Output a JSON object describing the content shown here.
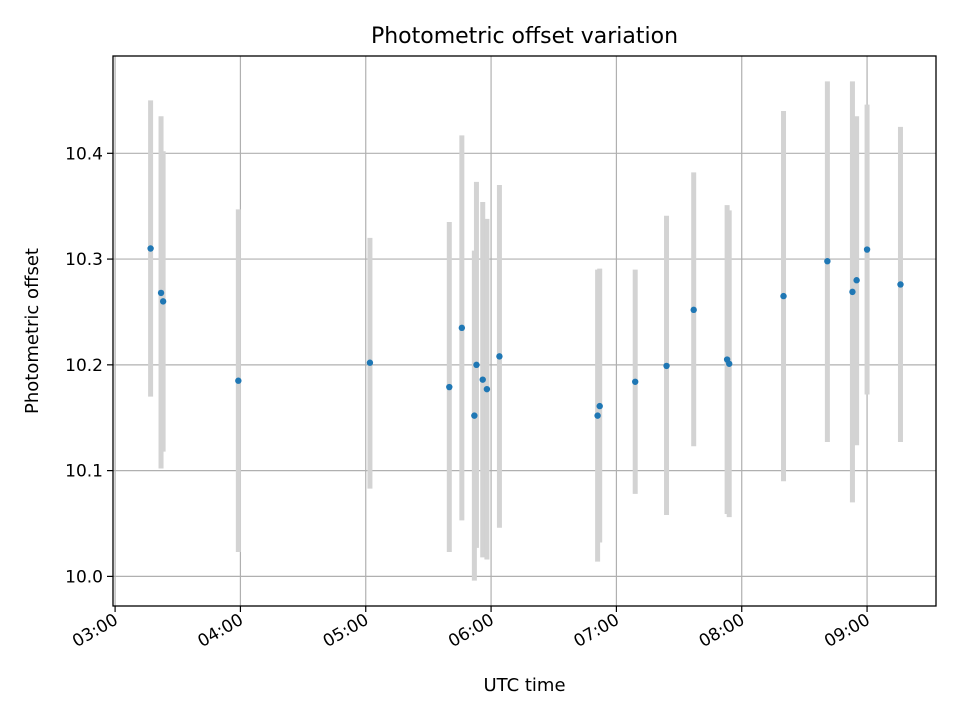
{
  "chart_data": {
    "type": "scatter",
    "title": "Photometric offset variation",
    "xlabel": "UTC time",
    "ylabel": "Photometric offset",
    "x_ticks": [
      "03:00",
      "04:00",
      "05:00",
      "06:00",
      "07:00",
      "08:00",
      "09:00"
    ],
    "y_ticks": [
      "10.0",
      "10.1",
      "10.2",
      "10.3",
      "10.4"
    ],
    "xlim": [
      "02:59",
      "09:33"
    ],
    "ylim": [
      9.972,
      10.492
    ],
    "grid": true,
    "colors": {
      "point": "#1f77b4",
      "errorbar": "#d3d3d3",
      "grid": "#b0b0b0"
    },
    "points": [
      {
        "x": "03:17",
        "y": 10.31,
        "y_low": 10.17,
        "y_high": 10.45
      },
      {
        "x": "03:22",
        "y": 10.268,
        "y_low": 10.102,
        "y_high": 10.435
      },
      {
        "x": "03:23",
        "y": 10.26,
        "y_low": 10.118,
        "y_high": 10.402
      },
      {
        "x": "03:59",
        "y": 10.185,
        "y_low": 10.023,
        "y_high": 10.347
      },
      {
        "x": "05:02",
        "y": 10.202,
        "y_low": 10.083,
        "y_high": 10.32
      },
      {
        "x": "05:40",
        "y": 10.179,
        "y_low": 10.023,
        "y_high": 10.335
      },
      {
        "x": "05:46",
        "y": 10.235,
        "y_low": 10.053,
        "y_high": 10.417
      },
      {
        "x": "05:52",
        "y": 10.152,
        "y_low": 9.996,
        "y_high": 10.308
      },
      {
        "x": "05:53",
        "y": 10.2,
        "y_low": 10.027,
        "y_high": 10.373
      },
      {
        "x": "05:56",
        "y": 10.186,
        "y_low": 10.018,
        "y_high": 10.354
      },
      {
        "x": "05:58",
        "y": 10.177,
        "y_low": 10.016,
        "y_high": 10.338
      },
      {
        "x": "06:04",
        "y": 10.208,
        "y_low": 10.046,
        "y_high": 10.37
      },
      {
        "x": "06:51",
        "y": 10.152,
        "y_low": 10.014,
        "y_high": 10.29
      },
      {
        "x": "06:52",
        "y": 10.161,
        "y_low": 10.032,
        "y_high": 10.291
      },
      {
        "x": "07:09",
        "y": 10.184,
        "y_low": 10.078,
        "y_high": 10.29
      },
      {
        "x": "07:24",
        "y": 10.199,
        "y_low": 10.058,
        "y_high": 10.341
      },
      {
        "x": "07:37",
        "y": 10.252,
        "y_low": 10.123,
        "y_high": 10.382
      },
      {
        "x": "07:53",
        "y": 10.205,
        "y_low": 10.059,
        "y_high": 10.351
      },
      {
        "x": "07:54",
        "y": 10.201,
        "y_low": 10.056,
        "y_high": 10.346
      },
      {
        "x": "08:20",
        "y": 10.265,
        "y_low": 10.09,
        "y_high": 10.44
      },
      {
        "x": "08:41",
        "y": 10.298,
        "y_low": 10.127,
        "y_high": 10.468
      },
      {
        "x": "08:53",
        "y": 10.269,
        "y_low": 10.07,
        "y_high": 10.468
      },
      {
        "x": "08:55",
        "y": 10.28,
        "y_low": 10.124,
        "y_high": 10.435
      },
      {
        "x": "09:00",
        "y": 10.309,
        "y_low": 10.172,
        "y_high": 10.446
      },
      {
        "x": "09:16",
        "y": 10.276,
        "y_low": 10.127,
        "y_high": 10.425
      }
    ]
  }
}
